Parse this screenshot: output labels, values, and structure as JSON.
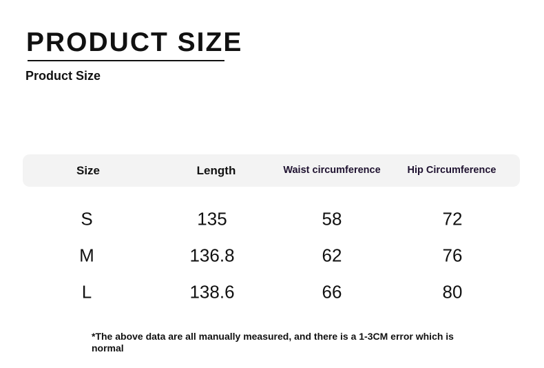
{
  "title": "PRODUCT SIZE",
  "subtitle": "Product Size",
  "table": {
    "headers": [
      "Size",
      "Length",
      "Waist circumference",
      "Hip Circumference"
    ],
    "rows": [
      [
        "S",
        "135",
        "58",
        "72"
      ],
      [
        "M",
        "136.8",
        "62",
        "76"
      ],
      [
        "L",
        "138.6",
        "66",
        "80"
      ]
    ]
  },
  "note": "*The above data are all manually measured, and there is a 1-3CM error which is normal"
}
